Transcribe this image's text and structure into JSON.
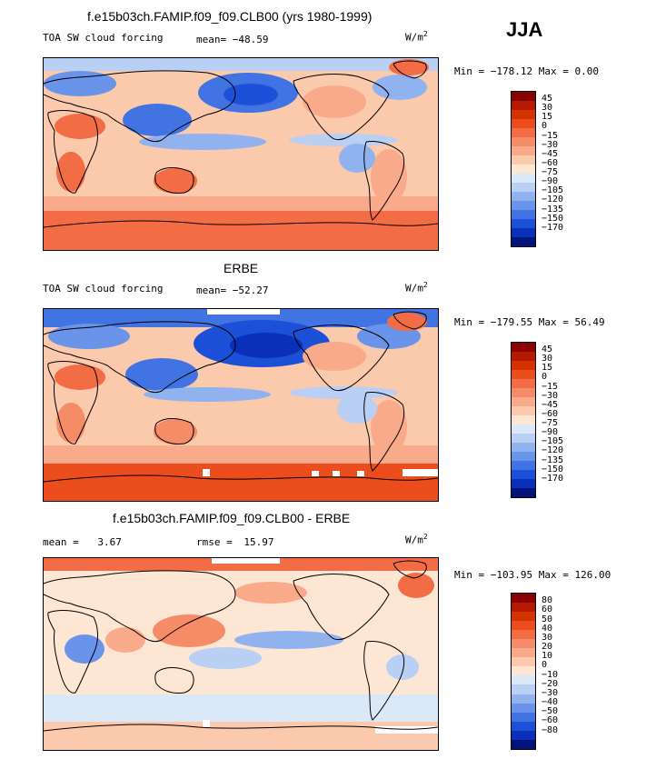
{
  "season": "JJA",
  "units_base": "W/m",
  "units_sup": "2",
  "panels": [
    {
      "title": "f.e15b03ch.FAMIP.f09_f09.CLB00 (yrs 1980-1999)",
      "field_label": "TOA SW cloud forcing",
      "stat_label": "mean=",
      "stat_value": "−48.59",
      "minmax": "Min = −178.12 Max =    0.00"
    },
    {
      "title": "ERBE",
      "field_label": "TOA SW cloud forcing",
      "stat_label": "mean=",
      "stat_value": "−52.27",
      "minmax": "Min = −179.55 Max =  56.49"
    },
    {
      "title": "f.e15b03ch.FAMIP.f09_f09.CLB00 - ERBE",
      "field_label": "mean =",
      "field_value": "3.67",
      "stat_label": "rmse =",
      "stat_value": "15.97",
      "minmax": "Min = −103.95 Max = 126.00"
    }
  ],
  "chart_data": [
    {
      "type": "heatmap",
      "title": "f.e15b03ch.FAMIP.f09_f09.CLB00 (yrs 1980-1999)",
      "variable": "TOA SW cloud forcing",
      "units": "W/m2",
      "mean": -48.59,
      "min": -178.12,
      "max": 0.0,
      "colorbar_levels": [
        45,
        30,
        15,
        0,
        -15,
        -30,
        -45,
        -60,
        -75,
        -90,
        -105,
        -120,
        -135,
        -150,
        -170
      ],
      "colorbar_labels": [
        "45",
        "30",
        "15",
        "0",
        "−15",
        "−30",
        "−45",
        "−60",
        "−75",
        "−90",
        "−105",
        "−120",
        "−135",
        "−150",
        "−170"
      ],
      "colors": [
        "#8b0000",
        "#b51a00",
        "#d63200",
        "#eb4d1c",
        "#f26d45",
        "#f58b67",
        "#f8aa8a",
        "#fbc9ac",
        "#fde6d3",
        "#dbe8f8",
        "#b9d0f4",
        "#90b3ef",
        "#6994ea",
        "#4273e3",
        "#1d50d8",
        "#0a2fb8",
        "#00137a"
      ]
    },
    {
      "type": "heatmap",
      "title": "ERBE",
      "variable": "TOA SW cloud forcing",
      "units": "W/m2",
      "mean": -52.27,
      "min": -179.55,
      "max": 56.49,
      "colorbar_levels": [
        45,
        30,
        15,
        0,
        -15,
        -30,
        -45,
        -60,
        -75,
        -90,
        -105,
        -120,
        -135,
        -150,
        -170
      ],
      "colorbar_labels": [
        "45",
        "30",
        "15",
        "0",
        "−15",
        "−30",
        "−45",
        "−60",
        "−75",
        "−90",
        "−105",
        "−120",
        "−135",
        "−150",
        "−170"
      ],
      "colors": [
        "#8b0000",
        "#b51a00",
        "#d63200",
        "#eb4d1c",
        "#f26d45",
        "#f58b67",
        "#f8aa8a",
        "#fbc9ac",
        "#fde6d3",
        "#dbe8f8",
        "#b9d0f4",
        "#90b3ef",
        "#6994ea",
        "#4273e3",
        "#1d50d8",
        "#0a2fb8",
        "#00137a"
      ]
    },
    {
      "type": "heatmap",
      "title": "f.e15b03ch.FAMIP.f09_f09.CLB00 - ERBE",
      "variable": "difference",
      "units": "W/m2",
      "mean": 3.67,
      "rmse": 15.97,
      "min": -103.95,
      "max": 126.0,
      "colorbar_levels": [
        80,
        60,
        50,
        40,
        30,
        20,
        10,
        0,
        -10,
        -20,
        -30,
        -40,
        -50,
        -60,
        -80
      ],
      "colorbar_labels": [
        "80",
        "60",
        "50",
        "40",
        "30",
        "20",
        "10",
        "0",
        "−10",
        "−20",
        "−30",
        "−40",
        "−50",
        "−60",
        "−80"
      ],
      "colors": [
        "#8b0000",
        "#b51a00",
        "#d63200",
        "#eb4d1c",
        "#f26d45",
        "#f58b67",
        "#f8aa8a",
        "#fbc9ac",
        "#fde6d3",
        "#dbe8f8",
        "#b9d0f4",
        "#90b3ef",
        "#6994ea",
        "#4273e3",
        "#1d50d8",
        "#0a2fb8",
        "#00137a"
      ]
    }
  ]
}
